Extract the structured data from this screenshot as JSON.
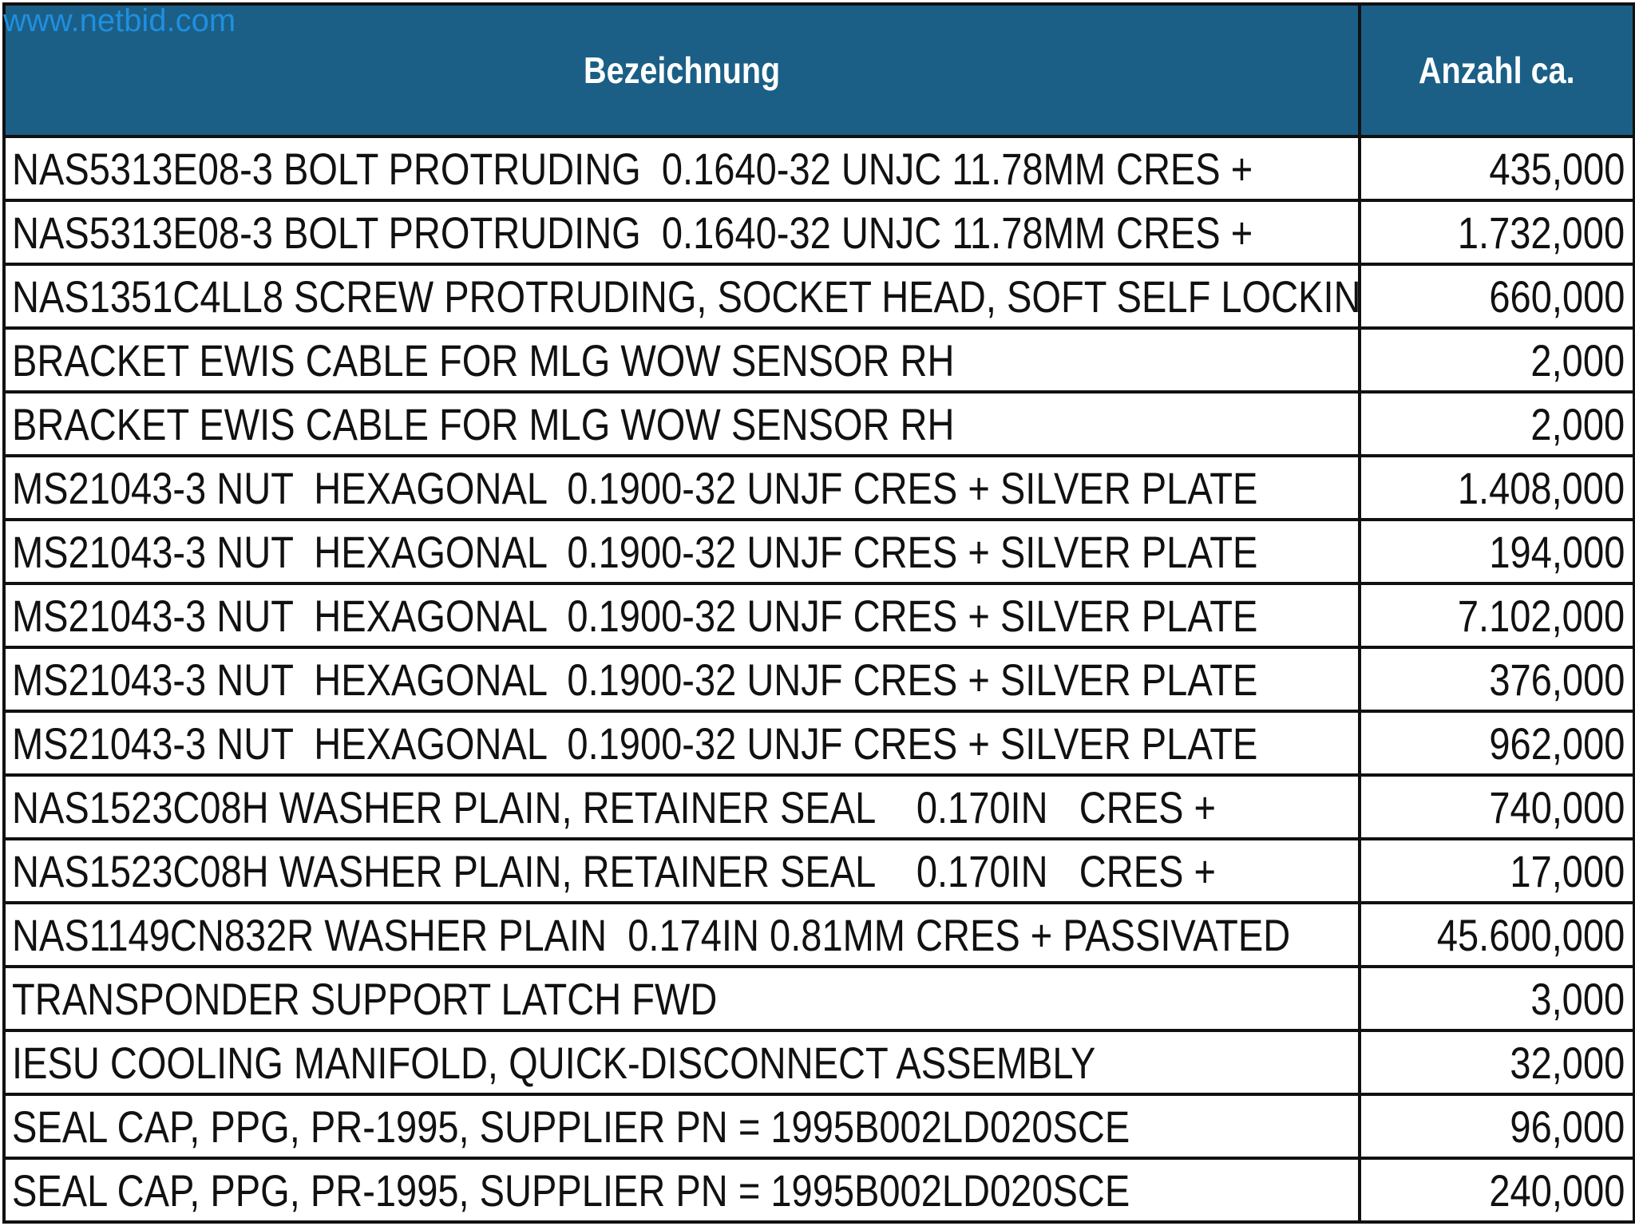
{
  "watermark": "www.netbid.com",
  "table": {
    "headers": {
      "description": "Bezeichnung",
      "quantity": "Anzahl ca."
    },
    "rows": [
      {
        "description": "NAS5313E08-3 BOLT PROTRUDING  0.1640-32 UNJC 11.78MM CRES +",
        "quantity": "435,000"
      },
      {
        "description": "NAS5313E08-3 BOLT PROTRUDING  0.1640-32 UNJC 11.78MM CRES +",
        "quantity": "1.732,000"
      },
      {
        "description": "NAS1351C4LL8 SCREW PROTRUDING, SOCKET HEAD, SOFT SELF LOCKIN",
        "quantity": "660,000"
      },
      {
        "description": "BRACKET EWIS CABLE FOR MLG WOW SENSOR RH",
        "quantity": "2,000"
      },
      {
        "description": "BRACKET EWIS CABLE FOR MLG WOW SENSOR RH",
        "quantity": "2,000"
      },
      {
        "description": "MS21043-3 NUT  HEXAGONAL  0.1900-32 UNJF CRES + SILVER PLATE",
        "quantity": "1.408,000"
      },
      {
        "description": "MS21043-3 NUT  HEXAGONAL  0.1900-32 UNJF CRES + SILVER PLATE",
        "quantity": "194,000"
      },
      {
        "description": "MS21043-3 NUT  HEXAGONAL  0.1900-32 UNJF CRES + SILVER PLATE",
        "quantity": "7.102,000"
      },
      {
        "description": "MS21043-3 NUT  HEXAGONAL  0.1900-32 UNJF CRES + SILVER PLATE",
        "quantity": "376,000"
      },
      {
        "description": "MS21043-3 NUT  HEXAGONAL  0.1900-32 UNJF CRES + SILVER PLATE",
        "quantity": "962,000"
      },
      {
        "description": "NAS1523C08H WASHER PLAIN, RETAINER SEAL    0.170IN   CRES +",
        "quantity": "740,000"
      },
      {
        "description": "NAS1523C08H WASHER PLAIN, RETAINER SEAL    0.170IN   CRES +",
        "quantity": "17,000"
      },
      {
        "description": "NAS1149CN832R WASHER PLAIN  0.174IN 0.81MM CRES + PASSIVATED",
        "quantity": "45.600,000"
      },
      {
        "description": "TRANSPONDER SUPPORT LATCH FWD",
        "quantity": "3,000"
      },
      {
        "description": "IESU COOLING MANIFOLD, QUICK-DISCONNECT ASSEMBLY",
        "quantity": "32,000"
      },
      {
        "description": "SEAL CAP, PPG, PR-1995, SUPPLIER PN = 1995B002LD020SCE",
        "quantity": "96,000"
      },
      {
        "description": "SEAL CAP, PPG, PR-1995, SUPPLIER PN = 1995B002LD020SCE",
        "quantity": "240,000"
      }
    ]
  },
  "colors": {
    "header_background": "#1b5f86",
    "header_text": "#ffffff",
    "watermark": "#1f8fe0",
    "border": "#111111"
  }
}
